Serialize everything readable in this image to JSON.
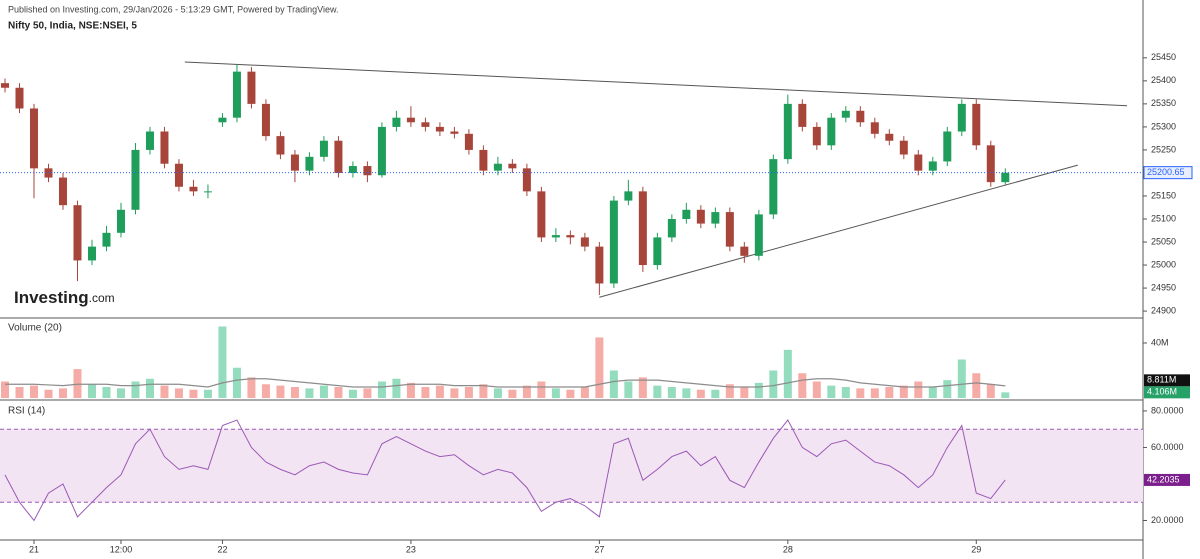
{
  "header": {
    "published": "Published on Investing.com, 29/Jan/2026 - 5:13:29 GMT, Powered by TradingView.",
    "brand": "Investing",
    "brand_suffix": ".com"
  },
  "chart_data": [
    {
      "type": "candlestick",
      "title": "Nifty 50, India, NSE:NSEI, 5",
      "categories": [
        null,
        null,
        "21",
        null,
        null,
        null,
        null,
        null,
        "12:00",
        null,
        null,
        null,
        null,
        null,
        null,
        "22",
        null,
        null,
        null,
        null,
        null,
        null,
        null,
        null,
        null,
        null,
        null,
        null,
        "23",
        null,
        null,
        null,
        null,
        null,
        null,
        null,
        null,
        null,
        null,
        null,
        null,
        "27",
        null,
        null,
        null,
        null,
        null,
        null,
        null,
        null,
        null,
        null,
        null,
        null,
        "28",
        null,
        null,
        null,
        null,
        null,
        null,
        null,
        null,
        null,
        null,
        null,
        null,
        "29",
        null,
        null
      ],
      "opens": [
        25395,
        25385,
        25340,
        25210,
        25190,
        25130,
        25010,
        25040,
        25070,
        25120,
        25250,
        25290,
        25220,
        25170,
        25160,
        25310,
        25320,
        25420,
        25350,
        25280,
        25240,
        25205,
        25235,
        25270,
        25200,
        25215,
        25195,
        25300,
        25320,
        25310,
        25300,
        25290,
        25285,
        25250,
        25205,
        25220,
        25210,
        25160,
        25060,
        25065,
        25060,
        25040,
        24960,
        25140,
        25160,
        25000,
        25060,
        25100,
        25120,
        25090,
        25115,
        25040,
        25020,
        25110,
        25230,
        25350,
        25300,
        25260,
        25320,
        25335,
        25310,
        25285,
        25270,
        25240,
        25205,
        25225,
        25290,
        25350,
        25260,
        25180
      ],
      "highs": [
        25405,
        25395,
        25350,
        25220,
        25200,
        25140,
        25055,
        25085,
        25135,
        25265,
        25300,
        25300,
        25230,
        25185,
        25175,
        25330,
        25435,
        25430,
        25360,
        25290,
        25250,
        25245,
        25280,
        25280,
        25225,
        25225,
        25310,
        25335,
        25345,
        25320,
        25310,
        25300,
        25295,
        25260,
        25235,
        25230,
        25220,
        25170,
        25080,
        25075,
        25070,
        25050,
        25150,
        25185,
        25170,
        25070,
        25110,
        25135,
        25130,
        25125,
        25125,
        25050,
        25120,
        25240,
        25370,
        25360,
        25310,
        25330,
        25345,
        25345,
        25320,
        25295,
        25280,
        25250,
        25235,
        25300,
        25360,
        25360,
        25270,
        25210
      ],
      "lows": [
        25375,
        25330,
        25145,
        25180,
        25120,
        24965,
        25000,
        25030,
        25060,
        25110,
        25240,
        25210,
        25160,
        25150,
        25145,
        25300,
        25310,
        25340,
        25270,
        25230,
        25180,
        25195,
        25225,
        25190,
        25190,
        25180,
        25190,
        25290,
        25300,
        25290,
        25280,
        25275,
        25240,
        25195,
        25195,
        25200,
        25150,
        25050,
        25050,
        25045,
        25030,
        24935,
        24950,
        25130,
        24985,
        24990,
        25050,
        25090,
        25080,
        25080,
        25030,
        25005,
        25010,
        25100,
        25220,
        25290,
        25250,
        25250,
        25310,
        25300,
        25275,
        25260,
        25230,
        25195,
        25195,
        25215,
        25280,
        25250,
        25170,
        25175
      ],
      "closes": [
        25385,
        25340,
        25210,
        25190,
        25130,
        25010,
        25040,
        25070,
        25120,
        25250,
        25290,
        25220,
        25170,
        25160,
        25160,
        25320,
        25420,
        25350,
        25280,
        25240,
        25205,
        25235,
        25270,
        25200,
        25215,
        25195,
        25300,
        25320,
        25310,
        25300,
        25290,
        25285,
        25250,
        25205,
        25220,
        25210,
        25160,
        25060,
        25065,
        25060,
        25040,
        24960,
        25140,
        25160,
        25000,
        25060,
        25100,
        25120,
        25090,
        25115,
        25040,
        25020,
        25110,
        25230,
        25350,
        25300,
        25260,
        25320,
        25335,
        25310,
        25285,
        25270,
        25240,
        25205,
        25225,
        25290,
        25350,
        25260,
        25180,
        25200.65
      ],
      "up_color": "#1f9d5a",
      "down_color": "#a8453b",
      "last_color": "#2962ff",
      "xlim": [
        0,
        78.5
      ],
      "ylim": [
        24885,
        25543
      ],
      "yticks": [
        24900,
        24950,
        25000,
        25050,
        25100,
        25150,
        25250,
        25300,
        25350,
        25400,
        25450
      ],
      "trendlines": [
        {
          "x": [
            12.4,
            77.4
          ],
          "y": [
            25441,
            25346
          ]
        },
        {
          "x": [
            41,
            74
          ],
          "y": [
            24930,
            25217
          ]
        }
      ]
    },
    {
      "type": "bar",
      "title": "Volume (20)",
      "up_color": "#93dcbd",
      "down_color": "#f6aca6",
      "series": [
        {
          "values": [
            12,
            8,
            9,
            6,
            7,
            21,
            10,
            8,
            7,
            12,
            14,
            9,
            7,
            6,
            6,
            52,
            22,
            15,
            10,
            9,
            8,
            7,
            9,
            8,
            6,
            7,
            12,
            14,
            11,
            8,
            9,
            7,
            8,
            10,
            7,
            6,
            9,
            12,
            7,
            6,
            8,
            44,
            20,
            12,
            15,
            9,
            8,
            7,
            6,
            6,
            10,
            8,
            11,
            20,
            35,
            18,
            12,
            9,
            8,
            7,
            7,
            8,
            9,
            12,
            8,
            13,
            28,
            18,
            10,
            4.106
          ],
          "last_label": "4.106M",
          "label_color": "#26a269"
        },
        {
          "type": "line",
          "color": "#8c8c8c",
          "values": [
            10,
            10,
            10,
            9.5,
            9,
            10,
            10,
            10,
            9,
            9,
            10,
            10,
            10,
            9,
            8,
            11,
            13,
            14,
            14,
            13,
            12,
            11,
            10,
            9,
            8,
            8,
            8,
            9,
            10,
            10,
            10,
            9,
            9,
            9,
            8,
            8,
            8,
            8,
            8,
            8,
            8,
            10,
            12,
            13,
            13,
            13,
            12,
            11,
            10,
            9,
            8,
            8,
            8,
            9,
            11,
            13,
            14,
            14,
            13,
            11,
            10,
            9,
            8,
            8,
            8,
            9,
            10,
            11,
            10,
            8.811
          ],
          "last_label": "8.811M",
          "label_color": "#111111"
        }
      ],
      "ylim": [
        0,
        56.7
      ],
      "yticks": [
        {
          "value": 40,
          "label": "40M"
        }
      ]
    },
    {
      "type": "line",
      "title": "RSI (14)",
      "color": "#9b59b6",
      "band": [
        30,
        70
      ],
      "band_color": "#f2e4f3",
      "values": [
        45,
        30,
        20,
        35,
        40,
        22,
        30,
        38,
        45,
        62,
        70,
        55,
        48,
        50,
        48,
        72,
        75,
        60,
        52,
        48,
        45,
        50,
        52,
        48,
        46,
        45,
        62,
        66,
        62,
        58,
        55,
        56,
        50,
        45,
        48,
        46,
        38,
        25,
        30,
        32,
        28,
        22,
        62,
        65,
        42,
        48,
        55,
        58,
        50,
        55,
        42,
        38,
        52,
        65,
        75,
        60,
        55,
        62,
        64,
        58,
        52,
        50,
        45,
        38,
        45,
        60,
        72,
        35,
        32,
        42.2035
      ],
      "ylim": [
        9.3,
        84.9
      ],
      "yticks": [
        {
          "value": 80,
          "label": "80.0000"
        },
        {
          "value": 60,
          "label": "60.0000"
        },
        {
          "value": 20,
          "label": "20.0000"
        }
      ]
    }
  ]
}
